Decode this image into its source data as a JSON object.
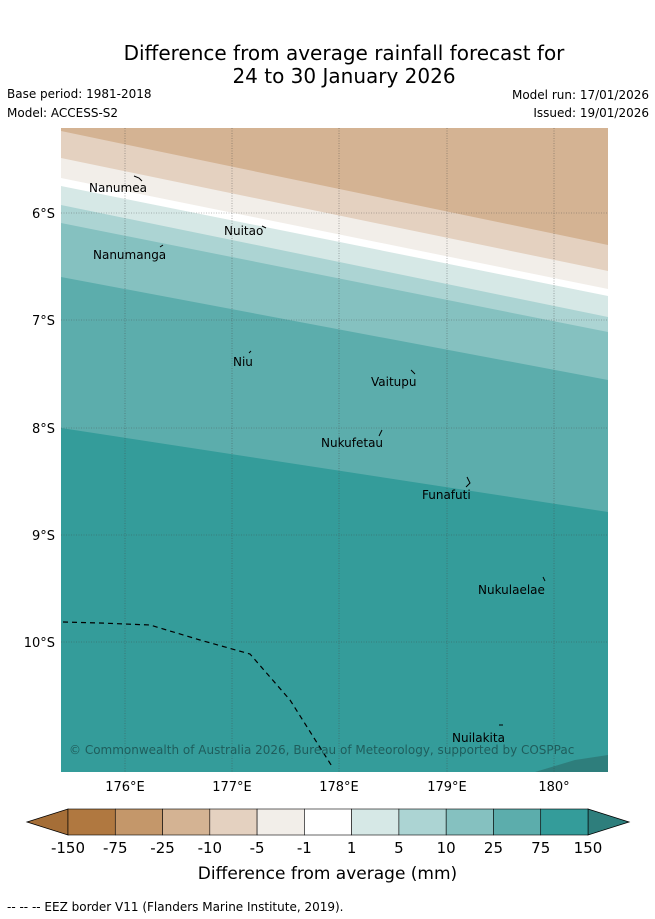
{
  "title": {
    "line1": "Difference from average rainfall forecast for",
    "line2": "24 to 30 January 2026"
  },
  "meta": {
    "base_period": "Base period: 1981-2018",
    "model": "Model: ACCESS-S2",
    "model_run": "Model run: 17/01/2026",
    "issued": "Issued: 19/01/2026"
  },
  "map": {
    "lat_labels": [
      "6°S",
      "7°S",
      "8°S",
      "9°S",
      "10°S"
    ],
    "lon_labels": [
      "176°E",
      "177°E",
      "178°E",
      "179°E",
      "180°"
    ],
    "places": [
      "Nanumea",
      "Nuitao",
      "Nanumanga",
      "Niu",
      "Vaitupu",
      "Nukufetau",
      "Funafuti",
      "Nukulaelae",
      "Nuilakita"
    ],
    "copyright": "© Commonwealth of Australia 2026, Bureau of Meteorology, supported by COSPPac"
  },
  "colorbar": {
    "ticks": [
      "-150",
      "-75",
      "-25",
      "-10",
      "-5",
      "-1",
      "1",
      "5",
      "10",
      "25",
      "75",
      "150"
    ],
    "colors": [
      "#b07840",
      "#c4976a",
      "#d4b393",
      "#e4d1c0",
      "#f2eee9",
      "#ffffff",
      "#d6e8e6",
      "#acd4d3",
      "#85c1c0",
      "#5cadac",
      "#349c9a"
    ],
    "under_color": "#a56e37",
    "over_color": "#2e7e7c",
    "label": "Difference from average (mm)"
  },
  "legend": {
    "eez": "--  --  -- EEZ border V11 (Flanders Marine Institute, 2019)."
  }
}
